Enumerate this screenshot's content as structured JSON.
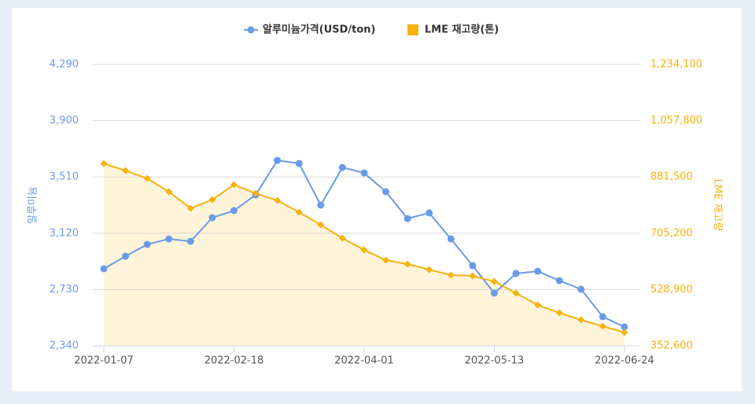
{
  "chart_data": {
    "type": "line",
    "categories": [
      "2022-01-07",
      null,
      null,
      null,
      null,
      null,
      "2022-02-18",
      null,
      null,
      null,
      null,
      null,
      "2022-04-01",
      null,
      null,
      null,
      null,
      null,
      "2022-05-13",
      null,
      null,
      null,
      null,
      null,
      "2022-06-24"
    ],
    "series": [
      {
        "name": "알루미늄가격(USD/ton)",
        "color": "#6a9be8",
        "marker": "circle",
        "values": [
          2874,
          2961,
          3043,
          3081,
          3064,
          3228,
          3277,
          3386,
          3625,
          3604,
          3315,
          3576,
          3538,
          3408,
          3222,
          3261,
          3081,
          2896,
          2705,
          2841,
          2857,
          2792,
          2732,
          2542,
          2471
        ]
      },
      {
        "name": "LME 재고량(톤)",
        "color": "#f6b20f",
        "marker": "diamond",
        "area_color": "#fef4d9",
        "axis": "y2",
        "values": [
          923800,
          901600,
          877000,
          835200,
          783500,
          810500,
          857300,
          830200,
          808100,
          771100,
          731700,
          689900,
          653000,
          621000,
          608600,
          591400,
          574200,
          571700,
          554500,
          517600,
          480600,
          456000,
          433800,
          414200,
          394500
        ]
      }
    ],
    "ylabel": "알루미늄",
    "y2label": "LME 재고량",
    "ylim": [
      2340,
      4290
    ],
    "yticks": [
      {
        "value": 2340,
        "label": "2,340"
      },
      {
        "value": 2730,
        "label": "2,730"
      },
      {
        "value": 3120,
        "label": "3,120"
      },
      {
        "value": 3510,
        "label": "3,510"
      },
      {
        "value": 3900,
        "label": "3,900"
      },
      {
        "value": 4290,
        "label": "4,290"
      }
    ],
    "y2lim": [
      352600,
      1234100
    ],
    "y2ticks": [
      {
        "value": 352600,
        "label": "352,600"
      },
      {
        "value": 528900,
        "label": "528,900"
      },
      {
        "value": 705200,
        "label": "705,200"
      },
      {
        "value": 881500,
        "label": "881,500"
      },
      {
        "value": 1057800,
        "label": "1,057,800"
      },
      {
        "value": 1234100,
        "label": "1,234,100"
      }
    ],
    "grid": true,
    "legend": "top"
  }
}
